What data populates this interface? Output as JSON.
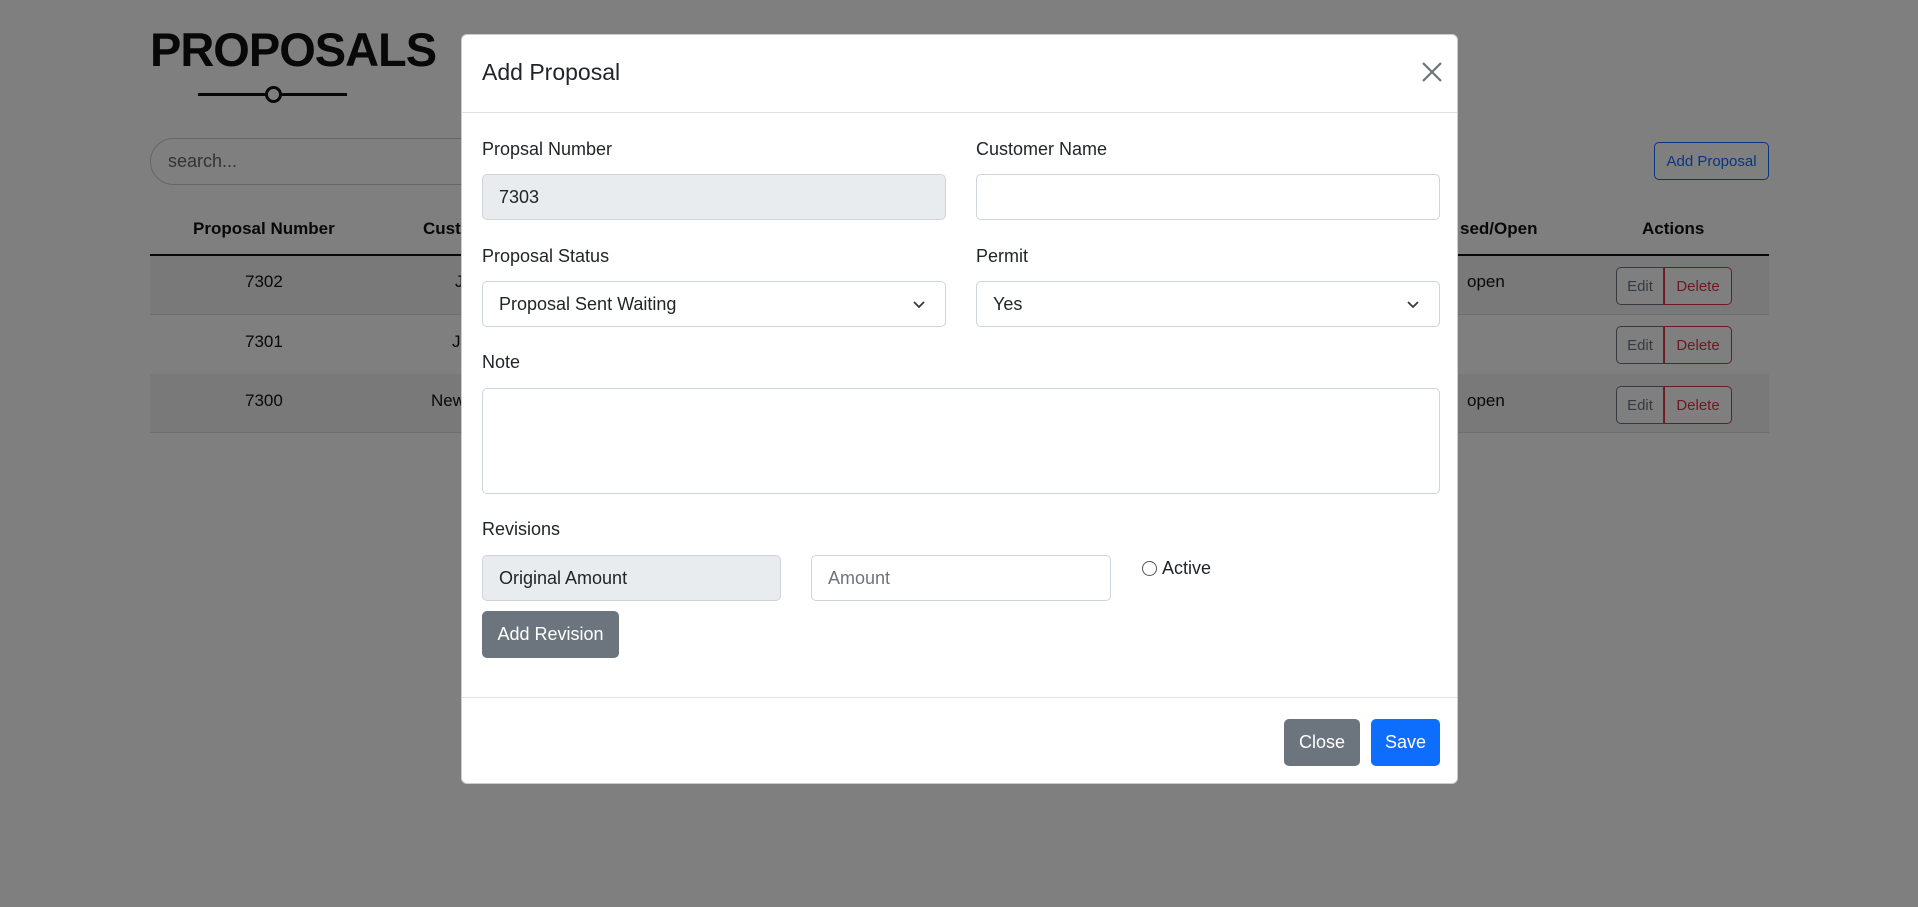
{
  "page": {
    "title": "PROPOSALS",
    "search_placeholder": "search...",
    "add_button": "Add Proposal",
    "table": {
      "headers": [
        "Proposal Number",
        "Cust",
        "sed/Open",
        "Actions"
      ],
      "rows": [
        {
          "number": "7302",
          "customer": "J",
          "status": "open"
        },
        {
          "number": "7301",
          "customer": "Jo",
          "status": ""
        },
        {
          "number": "7300",
          "customer": "New",
          "status": "open"
        }
      ],
      "edit_label": "Edit",
      "delete_label": "Delete"
    }
  },
  "modal": {
    "title": "Add Proposal",
    "close_icon": "close-x-icon",
    "fields": {
      "proposal_number_label": "Propsal Number",
      "proposal_number_value": "7303",
      "customer_name_label": "Customer Name",
      "customer_name_value": "",
      "status_label": "Proposal Status",
      "status_value": "Proposal Sent Waiting",
      "permit_label": "Permit",
      "permit_value": "Yes",
      "note_label": "Note",
      "note_value": ""
    },
    "revisions": {
      "label": "Revisions",
      "original_amount": "Original Amount",
      "amount_placeholder": "Amount",
      "active_label": "Active",
      "add_revision": "Add Revision"
    },
    "footer": {
      "close": "Close",
      "save": "Save"
    }
  },
  "colors": {
    "primary": "#0d6efd",
    "secondary": "#6c757d",
    "danger": "#dc3545"
  }
}
